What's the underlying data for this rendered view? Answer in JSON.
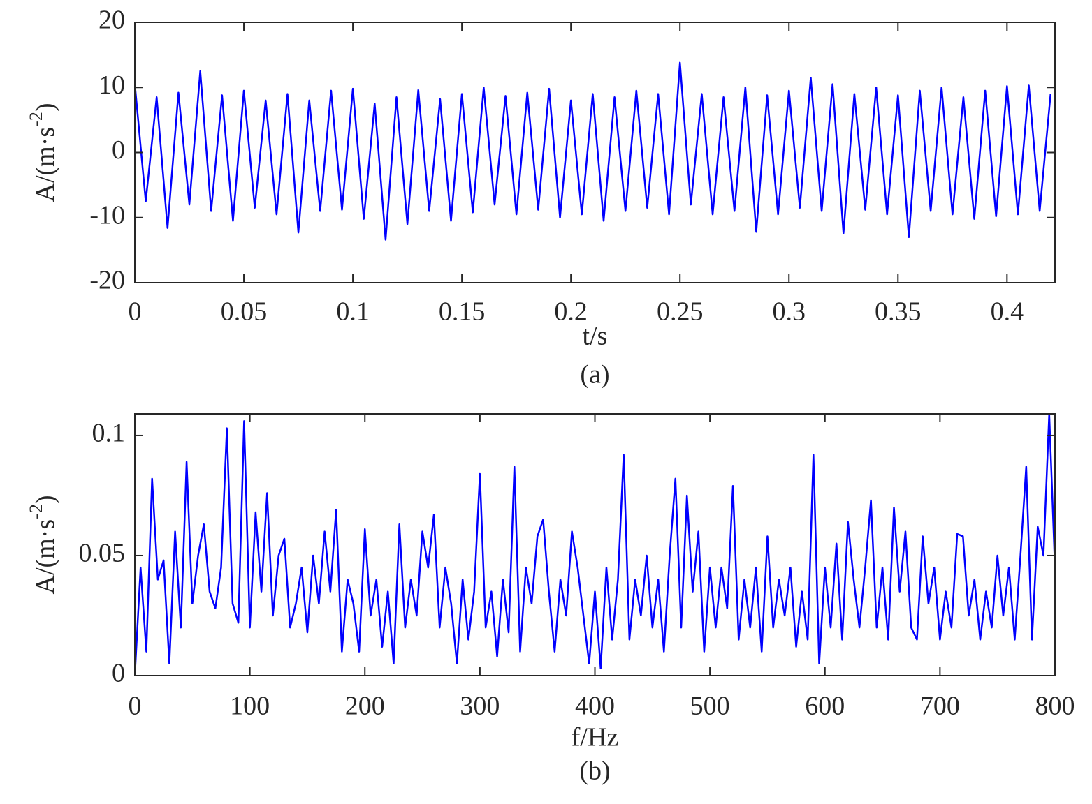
{
  "chart_data": [
    {
      "type": "line",
      "xlabel": "t/s",
      "ylabel": [
        "A/(m·s",
        "-2",
        ")"
      ],
      "caption": "(a)",
      "color": "#0000ff",
      "x": [
        0,
        0.005,
        0.01,
        0.015,
        0.02,
        0.025,
        0.03,
        0.035,
        0.04,
        0.045,
        0.05,
        0.055,
        0.06,
        0.065,
        0.07,
        0.075,
        0.08,
        0.085,
        0.09,
        0.095,
        0.1,
        0.105,
        0.11,
        0.115,
        0.12,
        0.125,
        0.13,
        0.135,
        0.14,
        0.145,
        0.15,
        0.155,
        0.16,
        0.165,
        0.17,
        0.175,
        0.18,
        0.185,
        0.19,
        0.195,
        0.2,
        0.205,
        0.21,
        0.215,
        0.22,
        0.225,
        0.23,
        0.235,
        0.24,
        0.245,
        0.25,
        0.255,
        0.26,
        0.265,
        0.27,
        0.275,
        0.28,
        0.285,
        0.29,
        0.295,
        0.3,
        0.305,
        0.31,
        0.315,
        0.32,
        0.325,
        0.33,
        0.335,
        0.34,
        0.345,
        0.35,
        0.355,
        0.36,
        0.365,
        0.37,
        0.375,
        0.38,
        0.385,
        0.39,
        0.395,
        0.4,
        0.405,
        0.41,
        0.415,
        0.42
      ],
      "values": [
        10.5,
        -7.5,
        8.5,
        -11.6,
        9.2,
        -8,
        12.5,
        -9,
        8.8,
        -10.5,
        9.5,
        -8.5,
        8,
        -9.5,
        9,
        -12.3,
        8,
        -9,
        9.5,
        -8.8,
        9.8,
        -10.2,
        7.5,
        -13.4,
        8.5,
        -11,
        9.6,
        -9,
        8.2,
        -10.5,
        9,
        -9.2,
        10,
        -8,
        8.7,
        -9.5,
        9.2,
        -8.8,
        9.8,
        -10,
        8,
        -9.5,
        9,
        -10.5,
        8.5,
        -9,
        9.5,
        -8.5,
        9,
        -9.5,
        13.8,
        -8,
        9,
        -9.5,
        8.5,
        -9,
        10,
        -12.2,
        8.8,
        -9.5,
        9.5,
        -8.5,
        11.5,
        -9,
        10.5,
        -12.4,
        9,
        -8.8,
        10,
        -9.5,
        8.8,
        -13,
        9.5,
        -9,
        10,
        -9.5,
        8.5,
        -10.2,
        9.5,
        -9.8,
        10.2,
        -9.5,
        10.3,
        -9,
        9
      ],
      "xlim": [
        0,
        0.422
      ],
      "ylim": [
        -20,
        20
      ],
      "xticks": [
        0,
        0.05,
        0.1,
        0.15,
        0.2,
        0.25,
        0.3,
        0.35,
        0.4
      ],
      "yticks": [
        -20,
        -10,
        0,
        10,
        20
      ]
    },
    {
      "type": "line",
      "xlabel": "f/Hz",
      "ylabel": [
        "A/(m·s",
        "-2",
        ")"
      ],
      "caption": "(b)",
      "color": "#0000ff",
      "x": [
        0,
        5,
        10,
        15,
        20,
        25,
        30,
        35,
        40,
        45,
        50,
        55,
        60,
        65,
        70,
        75,
        80,
        85,
        90,
        95,
        100,
        105,
        110,
        115,
        120,
        125,
        130,
        135,
        140,
        145,
        150,
        155,
        160,
        165,
        170,
        175,
        180,
        185,
        190,
        195,
        200,
        205,
        210,
        215,
        220,
        225,
        230,
        235,
        240,
        245,
        250,
        255,
        260,
        265,
        270,
        275,
        280,
        285,
        290,
        295,
        300,
        305,
        310,
        315,
        320,
        325,
        330,
        335,
        340,
        345,
        350,
        355,
        360,
        365,
        370,
        375,
        380,
        385,
        390,
        395,
        400,
        405,
        410,
        415,
        420,
        425,
        430,
        435,
        440,
        445,
        450,
        455,
        460,
        465,
        470,
        475,
        480,
        485,
        490,
        495,
        500,
        505,
        510,
        515,
        520,
        525,
        530,
        535,
        540,
        545,
        550,
        555,
        560,
        565,
        570,
        575,
        580,
        585,
        590,
        595,
        600,
        605,
        610,
        615,
        620,
        625,
        630,
        635,
        640,
        645,
        650,
        655,
        660,
        665,
        670,
        675,
        680,
        685,
        690,
        695,
        700,
        705,
        710,
        715,
        720,
        725,
        730,
        735,
        740,
        745,
        750,
        755,
        760,
        765,
        770,
        775,
        780,
        785,
        790,
        795,
        800
      ],
      "values": [
        0.0,
        0.045,
        0.01,
        0.082,
        0.04,
        0.048,
        0.005,
        0.06,
        0.02,
        0.089,
        0.03,
        0.05,
        0.063,
        0.035,
        0.028,
        0.045,
        0.103,
        0.03,
        0.022,
        0.106,
        0.02,
        0.068,
        0.035,
        0.076,
        0.025,
        0.05,
        0.057,
        0.02,
        0.03,
        0.045,
        0.018,
        0.05,
        0.03,
        0.06,
        0.035,
        0.069,
        0.01,
        0.04,
        0.03,
        0.01,
        0.061,
        0.025,
        0.04,
        0.012,
        0.035,
        0.005,
        0.063,
        0.02,
        0.04,
        0.025,
        0.06,
        0.045,
        0.067,
        0.02,
        0.045,
        0.03,
        0.005,
        0.04,
        0.015,
        0.035,
        0.084,
        0.02,
        0.035,
        0.008,
        0.04,
        0.018,
        0.087,
        0.01,
        0.045,
        0.03,
        0.058,
        0.065,
        0.035,
        0.01,
        0.04,
        0.025,
        0.06,
        0.045,
        0.025,
        0.005,
        0.035,
        0.003,
        0.045,
        0.015,
        0.04,
        0.092,
        0.015,
        0.04,
        0.025,
        0.05,
        0.02,
        0.04,
        0.01,
        0.05,
        0.082,
        0.02,
        0.075,
        0.035,
        0.06,
        0.01,
        0.045,
        0.02,
        0.045,
        0.028,
        0.079,
        0.015,
        0.04,
        0.02,
        0.045,
        0.01,
        0.058,
        0.02,
        0.04,
        0.025,
        0.045,
        0.012,
        0.035,
        0.015,
        0.092,
        0.005,
        0.045,
        0.02,
        0.055,
        0.015,
        0.064,
        0.04,
        0.02,
        0.045,
        0.073,
        0.02,
        0.045,
        0.015,
        0.07,
        0.035,
        0.06,
        0.02,
        0.015,
        0.058,
        0.03,
        0.045,
        0.015,
        0.035,
        0.02,
        0.059,
        0.058,
        0.025,
        0.04,
        0.015,
        0.035,
        0.02,
        0.05,
        0.025,
        0.045,
        0.015,
        0.05,
        0.087,
        0.015,
        0.062,
        0.05,
        0.109,
        0.045
      ],
      "xlim": [
        0,
        800
      ],
      "ylim": [
        0,
        0.109
      ],
      "xticks": [
        0,
        100,
        200,
        300,
        400,
        500,
        600,
        700,
        800
      ],
      "yticks": [
        0,
        0.05,
        0.1
      ]
    }
  ]
}
